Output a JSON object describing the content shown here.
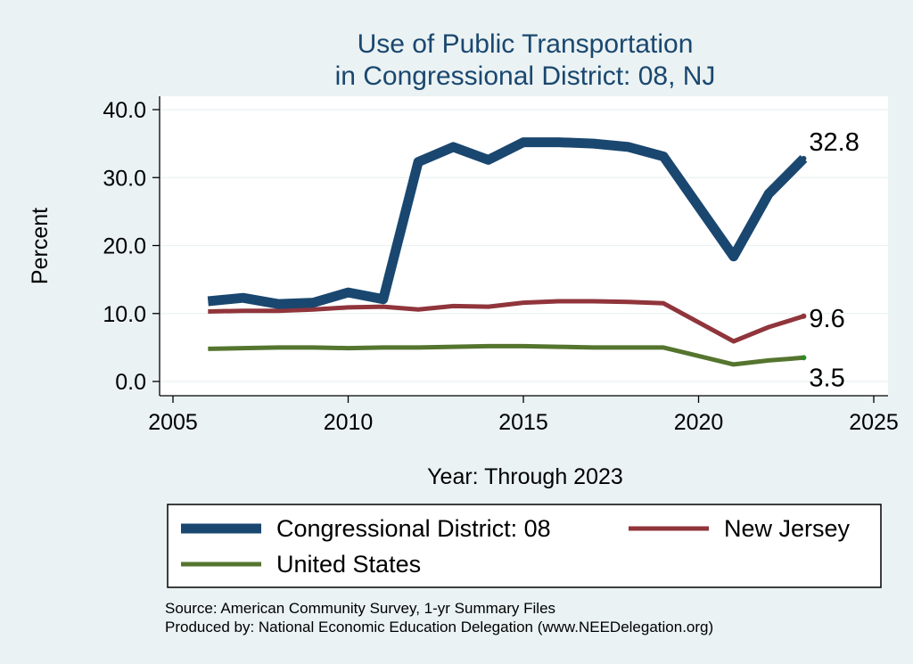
{
  "chart_data": {
    "type": "line",
    "title": [
      "Use of Public Transportation",
      "in Congressional District: 08, NJ"
    ],
    "xlabel": "Year: Through 2023",
    "ylabel": "Percent",
    "xlim": [
      2005,
      2025
    ],
    "ylim": [
      0,
      40
    ],
    "xticks": [
      2005,
      2010,
      2015,
      2020,
      2025
    ],
    "yticks": [
      0,
      10,
      20,
      30,
      40
    ],
    "ytick_labels": [
      "0.0",
      "10.0",
      "20.0",
      "30.0",
      "40.0"
    ],
    "grid": true,
    "legend_position": "bottom",
    "series": [
      {
        "name": "Congressional District: 08",
        "color": "#1a476f",
        "x": [
          2006,
          2007,
          2008,
          2009,
          2010,
          2011,
          2012,
          2013,
          2014,
          2015,
          2016,
          2017,
          2018,
          2019,
          2021,
          2022,
          2023
        ],
        "values": [
          11.8,
          12.3,
          11.4,
          11.6,
          13.1,
          12.1,
          32.3,
          34.5,
          32.6,
          35.2,
          35.2,
          35.0,
          34.5,
          33.1,
          18.4,
          27.6,
          32.8
        ],
        "end_label": "32.8"
      },
      {
        "name": "New Jersey",
        "color": "#90353b",
        "x": [
          2006,
          2007,
          2008,
          2009,
          2010,
          2011,
          2012,
          2013,
          2014,
          2015,
          2016,
          2017,
          2018,
          2019,
          2021,
          2022,
          2023
        ],
        "values": [
          10.3,
          10.4,
          10.4,
          10.6,
          10.9,
          11.0,
          10.6,
          11.1,
          11.0,
          11.6,
          11.8,
          11.8,
          11.7,
          11.5,
          5.9,
          8.0,
          9.6
        ],
        "end_label": "9.6"
      },
      {
        "name": "United States",
        "color": "#55752f",
        "x": [
          2006,
          2007,
          2008,
          2009,
          2010,
          2011,
          2012,
          2013,
          2014,
          2015,
          2016,
          2017,
          2018,
          2019,
          2021,
          2022,
          2023
        ],
        "values": [
          4.8,
          4.9,
          5.0,
          5.0,
          4.9,
          5.0,
          5.0,
          5.1,
          5.2,
          5.2,
          5.1,
          5.0,
          5.0,
          5.0,
          2.5,
          3.1,
          3.5
        ],
        "end_label": "3.5"
      }
    ]
  },
  "footnotes": {
    "source": "Source: American Community Survey, 1-yr Summary Files",
    "producer": "Produced by: National Economic Education Delegation (www.NEEDelegation.org)"
  }
}
